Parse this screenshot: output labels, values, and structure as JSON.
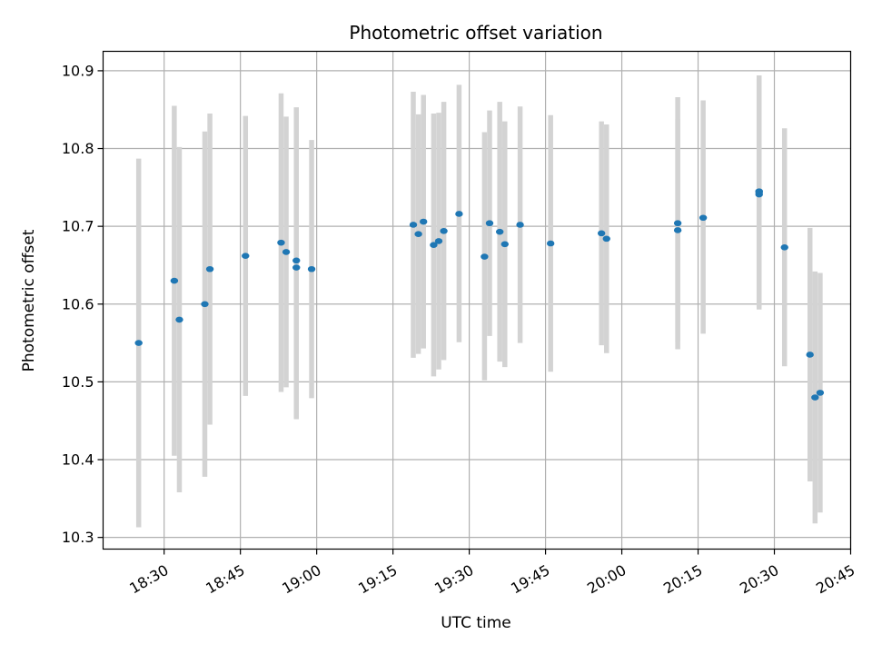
{
  "chart_data": {
    "type": "scatter",
    "title": "Photometric offset variation",
    "xlabel": "UTC time",
    "ylabel": "Photometric offset",
    "x_tick_labels": [
      "18:30",
      "18:45",
      "19:00",
      "19:15",
      "19:30",
      "19:45",
      "20:00",
      "20:15",
      "20:30",
      "20:45"
    ],
    "y_tick_labels": [
      "10.3",
      "10.4",
      "10.5",
      "10.6",
      "10.7",
      "10.8",
      "10.9"
    ],
    "xlim": [
      "18:18",
      "20:45"
    ],
    "ylim": [
      10.285,
      10.925
    ],
    "grid": true,
    "point_color": "#1f77b4",
    "errorbar_color": "#d3d3d3",
    "series": [
      {
        "points": [
          {
            "x": "18:25",
            "y": 10.55,
            "lo": 10.313,
            "hi": 10.787
          },
          {
            "x": "18:32",
            "y": 10.63,
            "lo": 10.405,
            "hi": 10.855
          },
          {
            "x": "18:33",
            "y": 10.58,
            "lo": 10.358,
            "hi": 10.802
          },
          {
            "x": "18:38",
            "y": 10.6,
            "lo": 10.378,
            "hi": 10.822
          },
          {
            "x": "18:39",
            "y": 10.645,
            "lo": 10.445,
            "hi": 10.845
          },
          {
            "x": "18:46",
            "y": 10.662,
            "lo": 10.482,
            "hi": 10.842
          },
          {
            "x": "18:53",
            "y": 10.679,
            "lo": 10.487,
            "hi": 10.871
          },
          {
            "x": "18:54",
            "y": 10.667,
            "lo": 10.493,
            "hi": 10.841
          },
          {
            "x": "18:56",
            "y": 10.647,
            "lo": 10.452,
            "hi": 10.842
          },
          {
            "x": "18:56",
            "y": 10.656,
            "lo": 10.458,
            "hi": 10.853
          },
          {
            "x": "18:59",
            "y": 10.645,
            "lo": 10.479,
            "hi": 10.811
          },
          {
            "x": "19:19",
            "y": 10.702,
            "lo": 10.531,
            "hi": 10.873
          },
          {
            "x": "19:20",
            "y": 10.69,
            "lo": 10.536,
            "hi": 10.844
          },
          {
            "x": "19:21",
            "y": 10.706,
            "lo": 10.543,
            "hi": 10.869
          },
          {
            "x": "19:23",
            "y": 10.676,
            "lo": 10.507,
            "hi": 10.845
          },
          {
            "x": "19:24",
            "y": 10.681,
            "lo": 10.516,
            "hi": 10.846
          },
          {
            "x": "19:25",
            "y": 10.694,
            "lo": 10.528,
            "hi": 10.86
          },
          {
            "x": "19:28",
            "y": 10.716,
            "lo": 10.551,
            "hi": 10.882
          },
          {
            "x": "19:33",
            "y": 10.661,
            "lo": 10.502,
            "hi": 10.821
          },
          {
            "x": "19:34",
            "y": 10.704,
            "lo": 10.559,
            "hi": 10.849
          },
          {
            "x": "19:36",
            "y": 10.693,
            "lo": 10.526,
            "hi": 10.86
          },
          {
            "x": "19:37",
            "y": 10.677,
            "lo": 10.519,
            "hi": 10.835
          },
          {
            "x": "19:40",
            "y": 10.702,
            "lo": 10.55,
            "hi": 10.854
          },
          {
            "x": "19:46",
            "y": 10.678,
            "lo": 10.513,
            "hi": 10.843
          },
          {
            "x": "19:56",
            "y": 10.691,
            "lo": 10.547,
            "hi": 10.835
          },
          {
            "x": "19:57",
            "y": 10.684,
            "lo": 10.537,
            "hi": 10.831
          },
          {
            "x": "20:11",
            "y": 10.704,
            "lo": 10.542,
            "hi": 10.866
          },
          {
            "x": "20:11",
            "y": 10.695,
            "lo": 10.552,
            "hi": 10.838
          },
          {
            "x": "20:16",
            "y": 10.711,
            "lo": 10.562,
            "hi": 10.862
          },
          {
            "x": "20:27",
            "y": 10.745,
            "lo": 10.596,
            "hi": 10.894
          },
          {
            "x": "20:27",
            "y": 10.741,
            "lo": 10.593,
            "hi": 10.889
          },
          {
            "x": "20:27",
            "y": 10.744,
            "lo": 10.595,
            "hi": 10.893
          },
          {
            "x": "20:32",
            "y": 10.673,
            "lo": 10.52,
            "hi": 10.826
          },
          {
            "x": "20:37",
            "y": 10.535,
            "lo": 10.372,
            "hi": 10.698
          },
          {
            "x": "20:38",
            "y": 10.48,
            "lo": 10.318,
            "hi": 10.642
          },
          {
            "x": "20:39",
            "y": 10.486,
            "lo": 10.332,
            "hi": 10.64
          }
        ]
      }
    ]
  }
}
